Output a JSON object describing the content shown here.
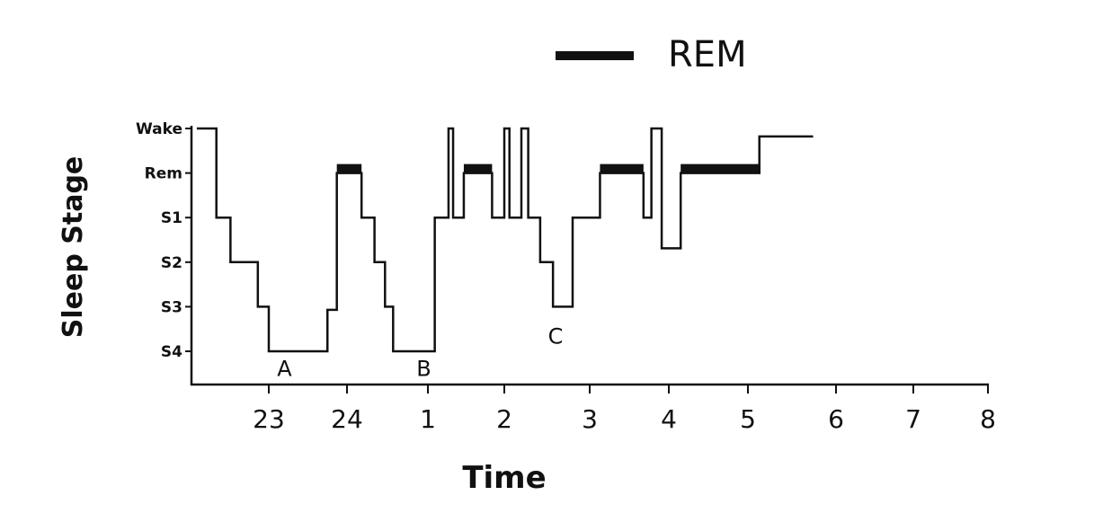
{
  "chart_data": {
    "type": "line",
    "subtype": "hypnogram-step",
    "xlabel": "Time",
    "ylabel": "Sleep Stage",
    "legend": {
      "label": "REM",
      "placement": "top-right"
    },
    "x_ticks": [
      {
        "value": 23,
        "label": "23"
      },
      {
        "value": 24,
        "label": "24"
      },
      {
        "value": 25,
        "label": "1"
      },
      {
        "value": 26,
        "label": "2"
      },
      {
        "value": 27,
        "label": "3"
      },
      {
        "value": 28,
        "label": "4"
      },
      {
        "value": 29,
        "label": "5"
      },
      {
        "value": 30,
        "label": "6"
      },
      {
        "value": 31,
        "label": "7"
      },
      {
        "value": 32,
        "label": "8"
      }
    ],
    "y_ticks": [
      {
        "value": 5,
        "label": "Wake"
      },
      {
        "value": 4,
        "label": "Rem"
      },
      {
        "value": 3,
        "label": "S1"
      },
      {
        "value": 2,
        "label": "S2"
      },
      {
        "value": 1,
        "label": "S3"
      },
      {
        "value": 0,
        "label": "S4"
      }
    ],
    "ylim": [
      -0.75,
      5
    ],
    "segments": [
      [
        22.08,
        22.33,
        5
      ],
      [
        22.33,
        22.51,
        3
      ],
      [
        22.51,
        22.86,
        2
      ],
      [
        22.86,
        23.0,
        1
      ],
      [
        23.0,
        23.75,
        0
      ],
      [
        23.75,
        23.87,
        0.93
      ],
      [
        23.87,
        24.18,
        4
      ],
      [
        24.18,
        24.34,
        3
      ],
      [
        24.34,
        24.47,
        2
      ],
      [
        24.47,
        24.57,
        1
      ],
      [
        24.57,
        25.09,
        0
      ],
      [
        25.09,
        25.27,
        3
      ],
      [
        25.27,
        25.33,
        5
      ],
      [
        25.33,
        25.47,
        3
      ],
      [
        25.47,
        25.84,
        4
      ],
      [
        25.84,
        26.0,
        3
      ],
      [
        26.0,
        26.06,
        5
      ],
      [
        26.06,
        26.2,
        3
      ],
      [
        26.2,
        26.28,
        5
      ],
      [
        26.28,
        26.42,
        3
      ],
      [
        26.42,
        26.57,
        2
      ],
      [
        26.57,
        26.8,
        1
      ],
      [
        26.8,
        27.13,
        3
      ],
      [
        27.13,
        27.68,
        4
      ],
      [
        27.68,
        27.78,
        3
      ],
      [
        27.78,
        27.91,
        5
      ],
      [
        27.91,
        28.15,
        2.31
      ],
      [
        28.15,
        29.13,
        4
      ],
      [
        29.13,
        29.74,
        4.82
      ]
    ],
    "rem_periods": [
      [
        23.87,
        24.18
      ],
      [
        25.47,
        25.84
      ],
      [
        27.13,
        27.68
      ],
      [
        28.15,
        29.13
      ]
    ],
    "annotations": [
      {
        "text": "A",
        "x": 23.2,
        "stage": -0.35
      },
      {
        "text": "B",
        "x": 24.95,
        "stage": -0.35
      },
      {
        "text": "C",
        "x": 26.6,
        "stage": 0.37
      }
    ]
  }
}
